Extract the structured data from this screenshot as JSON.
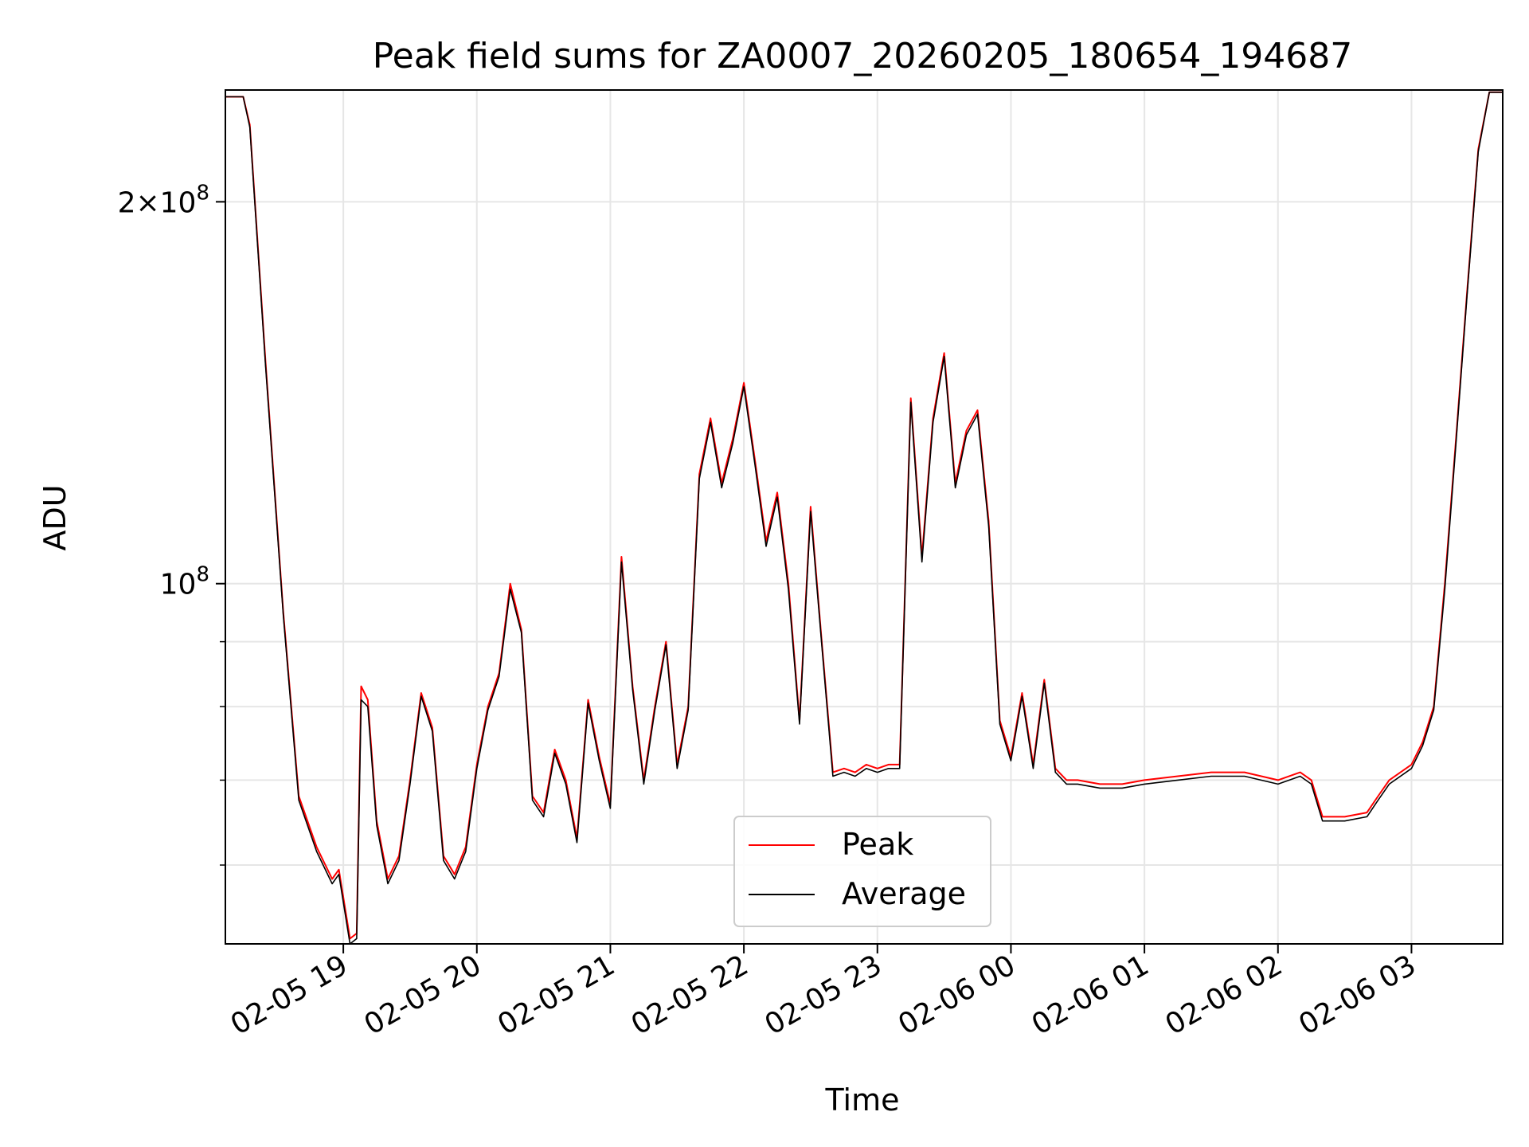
{
  "chart_data": {
    "type": "line",
    "title": "Peak field sums for ZA0007_20260205_180654_194687",
    "xlabel": "Time",
    "ylabel": "ADU",
    "x_scale": "time",
    "y_scale": "log",
    "xlim": [
      "2026-02-05 18:07",
      "2026-02-06 03:41"
    ],
    "ylim": [
      52000000,
      245000000
    ],
    "grid": true,
    "legend_position": "lower center",
    "x_ticks": [
      "2026-02-05 19:00",
      "2026-02-05 20:00",
      "2026-02-05 21:00",
      "2026-02-05 22:00",
      "2026-02-05 23:00",
      "2026-02-06 00:00",
      "2026-02-06 01:00",
      "2026-02-06 02:00",
      "2026-02-06 03:00"
    ],
    "x_tick_labels": [
      "02-05 19",
      "02-05 20",
      "02-05 21",
      "02-05 22",
      "02-05 23",
      "02-06 00",
      "02-06 01",
      "02-06 02",
      "02-06 03"
    ],
    "y_ticks": [
      {
        "value": 200000000,
        "mantissa": "2",
        "exponent": "8"
      },
      {
        "value": 100000000,
        "mantissa": "",
        "exponent": "8"
      }
    ],
    "y_minor_ticks": [
      60000000,
      70000000,
      80000000,
      90000000
    ],
    "x": [
      "2026-02-05 18:07",
      "2026-02-05 18:15",
      "2026-02-05 18:18",
      "2026-02-05 18:25",
      "2026-02-05 18:33",
      "2026-02-05 18:40",
      "2026-02-05 18:48",
      "2026-02-05 18:55",
      "2026-02-05 18:58",
      "2026-02-05 19:03",
      "2026-02-05 19:06",
      "2026-02-05 19:08",
      "2026-02-05 19:11",
      "2026-02-05 19:15",
      "2026-02-05 19:20",
      "2026-02-05 19:25",
      "2026-02-05 19:30",
      "2026-02-05 19:35",
      "2026-02-05 19:40",
      "2026-02-05 19:45",
      "2026-02-05 19:50",
      "2026-02-05 19:55",
      "2026-02-05 20:00",
      "2026-02-05 20:05",
      "2026-02-05 20:10",
      "2026-02-05 20:15",
      "2026-02-05 20:20",
      "2026-02-05 20:25",
      "2026-02-05 20:30",
      "2026-02-05 20:35",
      "2026-02-05 20:40",
      "2026-02-05 20:45",
      "2026-02-05 20:50",
      "2026-02-05 20:55",
      "2026-02-05 21:00",
      "2026-02-05 21:05",
      "2026-02-05 21:10",
      "2026-02-05 21:15",
      "2026-02-05 21:20",
      "2026-02-05 21:25",
      "2026-02-05 21:30",
      "2026-02-05 21:35",
      "2026-02-05 21:40",
      "2026-02-05 21:45",
      "2026-02-05 21:50",
      "2026-02-05 21:55",
      "2026-02-05 22:00",
      "2026-02-05 22:05",
      "2026-02-05 22:10",
      "2026-02-05 22:15",
      "2026-02-05 22:20",
      "2026-02-05 22:25",
      "2026-02-05 22:30",
      "2026-02-05 22:35",
      "2026-02-05 22:40",
      "2026-02-05 22:45",
      "2026-02-05 22:50",
      "2026-02-05 22:55",
      "2026-02-05 23:00",
      "2026-02-05 23:05",
      "2026-02-05 23:10",
      "2026-02-05 23:15",
      "2026-02-05 23:20",
      "2026-02-05 23:25",
      "2026-02-05 23:30",
      "2026-02-05 23:35",
      "2026-02-05 23:40",
      "2026-02-05 23:45",
      "2026-02-05 23:50",
      "2026-02-05 23:55",
      "2026-02-06 00:00",
      "2026-02-06 00:05",
      "2026-02-06 00:10",
      "2026-02-06 00:15",
      "2026-02-06 00:20",
      "2026-02-06 00:25",
      "2026-02-06 00:30",
      "2026-02-06 00:40",
      "2026-02-06 00:50",
      "2026-02-06 01:00",
      "2026-02-06 01:15",
      "2026-02-06 01:30",
      "2026-02-06 01:45",
      "2026-02-06 02:00",
      "2026-02-06 02:10",
      "2026-02-06 02:15",
      "2026-02-06 02:20",
      "2026-02-06 02:30",
      "2026-02-06 02:40",
      "2026-02-06 02:45",
      "2026-02-06 02:50",
      "2026-02-06 03:00",
      "2026-02-06 03:05",
      "2026-02-06 03:10",
      "2026-02-06 03:15",
      "2026-02-06 03:20",
      "2026-02-06 03:25",
      "2026-02-06 03:30",
      "2026-02-06 03:35",
      "2026-02-06 03:41"
    ],
    "series": [
      {
        "name": "Peak",
        "color": "#ff0000",
        "values": [
          242000000,
          242000000,
          230000000,
          150000000,
          95000000,
          68000000,
          62000000,
          58500000,
          59500000,
          52500000,
          53000000,
          83000000,
          81000000,
          65000000,
          58500000,
          61000000,
          70000000,
          82000000,
          77000000,
          61000000,
          59000000,
          62000000,
          72000000,
          80000000,
          85000000,
          100000000,
          92000000,
          68000000,
          66000000,
          74000000,
          70000000,
          63000000,
          81000000,
          73000000,
          67000000,
          105000000,
          83000000,
          70000000,
          80000000,
          90000000,
          72000000,
          80000000,
          122000000,
          135000000,
          120000000,
          130000000,
          144000000,
          125000000,
          108000000,
          118000000,
          100000000,
          78000000,
          115000000,
          90000000,
          71000000,
          71500000,
          71000000,
          72000000,
          71500000,
          72000000,
          72000000,
          140000000,
          105000000,
          135000000,
          152000000,
          120000000,
          132000000,
          137000000,
          112000000,
          78000000,
          73000000,
          82000000,
          72000000,
          84000000,
          71500000,
          70000000,
          70000000,
          69500000,
          69500000,
          70000000,
          70500000,
          71000000,
          71000000,
          70000000,
          71000000,
          70000000,
          65500000,
          65500000,
          66000000,
          68000000,
          70000000,
          72000000,
          75000000,
          80000000,
          100000000,
          130000000,
          170000000,
          220000000,
          244000000,
          244000000
        ]
      },
      {
        "name": "Average",
        "color": "#000000",
        "values": [
          242000000,
          242000000,
          229000000,
          149000000,
          94500000,
          67500000,
          61500000,
          58000000,
          59000000,
          52000000,
          52500000,
          81000000,
          80000000,
          64500000,
          58000000,
          60500000,
          69500000,
          81500000,
          76500000,
          60500000,
          58500000,
          61500000,
          71500000,
          79500000,
          84500000,
          99000000,
          91500000,
          67500000,
          65500000,
          73500000,
          69500000,
          62500000,
          80500000,
          72500000,
          66500000,
          104000000,
          82500000,
          69500000,
          79500000,
          89500000,
          71500000,
          79500000,
          121000000,
          134000000,
          119000000,
          129000000,
          143000000,
          124000000,
          107000000,
          117000000,
          99000000,
          77500000,
          114000000,
          89500000,
          70500000,
          71000000,
          70500000,
          71500000,
          71000000,
          71500000,
          71500000,
          139000000,
          104000000,
          134000000,
          151000000,
          119000000,
          131000000,
          136000000,
          111000000,
          77500000,
          72500000,
          81500000,
          71500000,
          83500000,
          71000000,
          69500000,
          69500000,
          69000000,
          69000000,
          69500000,
          70000000,
          70500000,
          70500000,
          69500000,
          70500000,
          69500000,
          65000000,
          65000000,
          65500000,
          67500000,
          69500000,
          71500000,
          74500000,
          79500000,
          99000000,
          129000000,
          169000000,
          219000000,
          244000000,
          244000000
        ]
      }
    ]
  }
}
